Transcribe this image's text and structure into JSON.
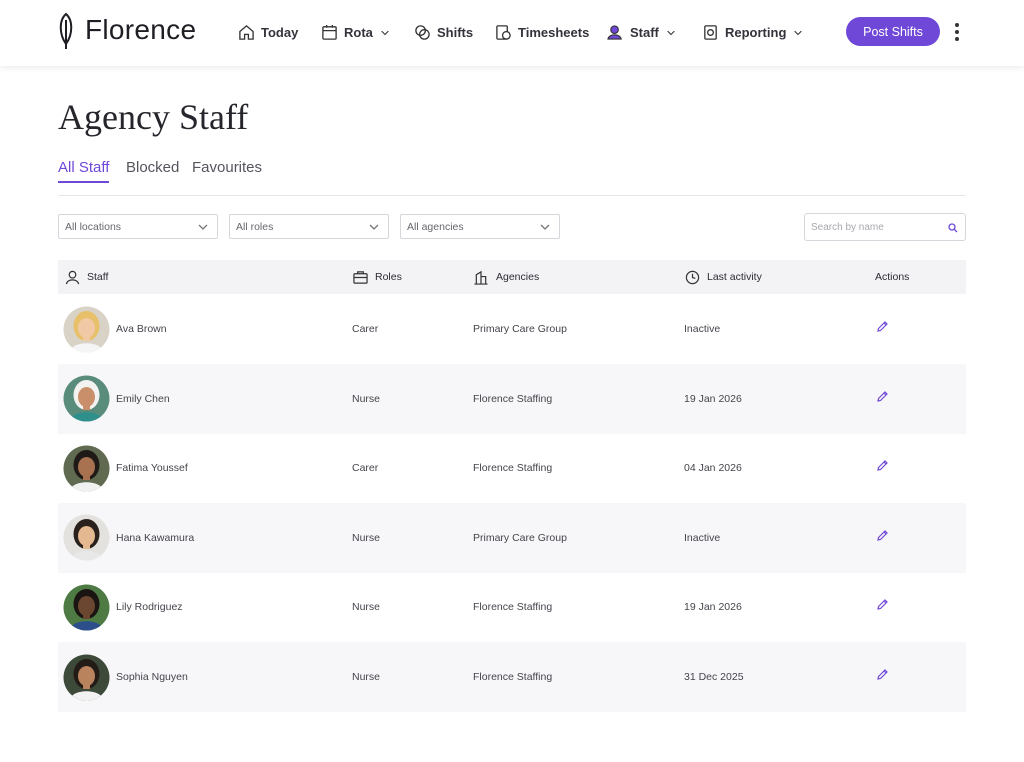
{
  "nav": {
    "brand": "Florence",
    "items": [
      "Today",
      "Rota",
      "Shifts",
      "Timesheets",
      "Staff",
      "Reporting"
    ],
    "button": "Post Shifts"
  },
  "page": {
    "title": "Agency Staff",
    "tabs": [
      "All Staff",
      "Blocked",
      "Favourites"
    ]
  },
  "filters": {
    "selects": [
      "All locations",
      "All roles",
      "All agencies"
    ],
    "search": "Search by name"
  },
  "table": {
    "headers": [
      "Staff",
      "Roles",
      "Agencies",
      "Last activity",
      "Actions"
    ],
    "rows": [
      [
        "Ava Brown",
        "Carer",
        "Primary Care Group",
        "Inactive"
      ],
      [
        "Emily Chen",
        "Nurse",
        "Florence Staffing",
        "19 Jan 2026"
      ],
      [
        "Fatima Youssef",
        "Carer",
        "Florence Staffing",
        "04 Jan 2026"
      ],
      [
        "Hana Kawamura",
        "Nurse",
        "Primary Care Group",
        "Inactive"
      ],
      [
        "Lily Rodriguez",
        "Nurse",
        "Florence Staffing",
        "19 Jan 2026"
      ],
      [
        "Sophia Nguyen",
        "Nurse",
        "Florence Staffing",
        "31 Dec 2025"
      ]
    ]
  }
}
